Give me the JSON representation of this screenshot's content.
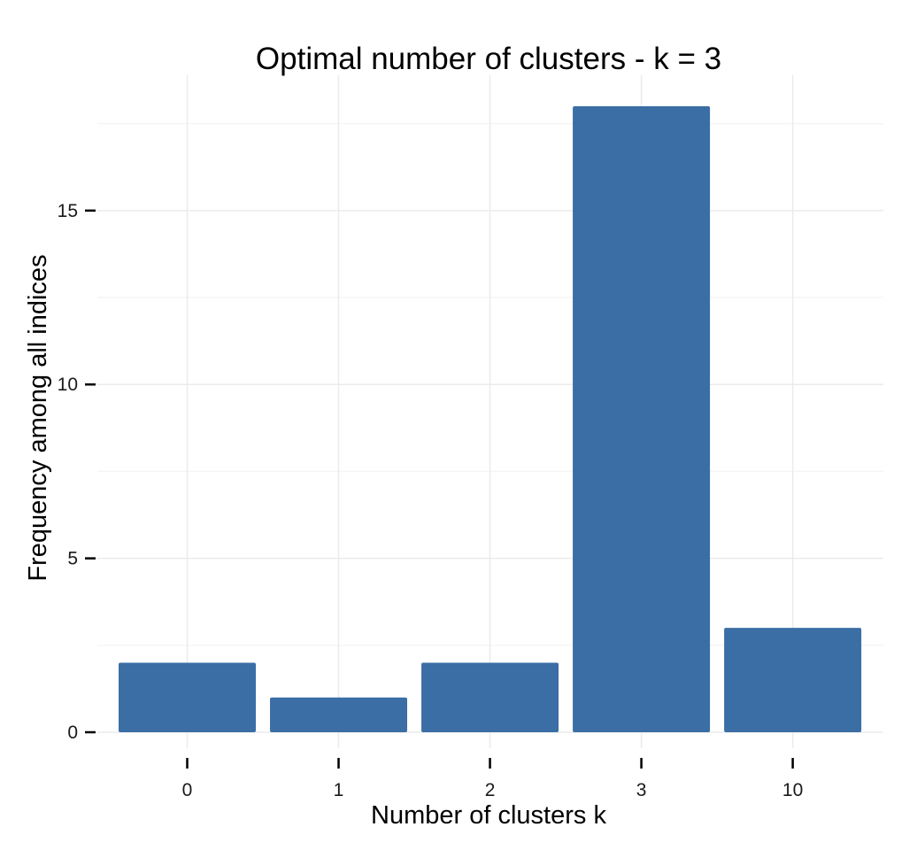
{
  "chart_data": {
    "type": "bar",
    "title": "Optimal number of clusters - k = 3",
    "xlabel": "Number of clusters k",
    "ylabel": "Frequency among all indices",
    "categories": [
      "0",
      "1",
      "2",
      "3",
      "10"
    ],
    "values": [
      2,
      1,
      2,
      18,
      3
    ],
    "ylim": [
      0,
      18
    ],
    "yticks": [
      "0",
      "5",
      "10",
      "15"
    ],
    "grid": true,
    "bar_color": "#3A6EA5",
    "grid_color": "#EBEBEB"
  }
}
